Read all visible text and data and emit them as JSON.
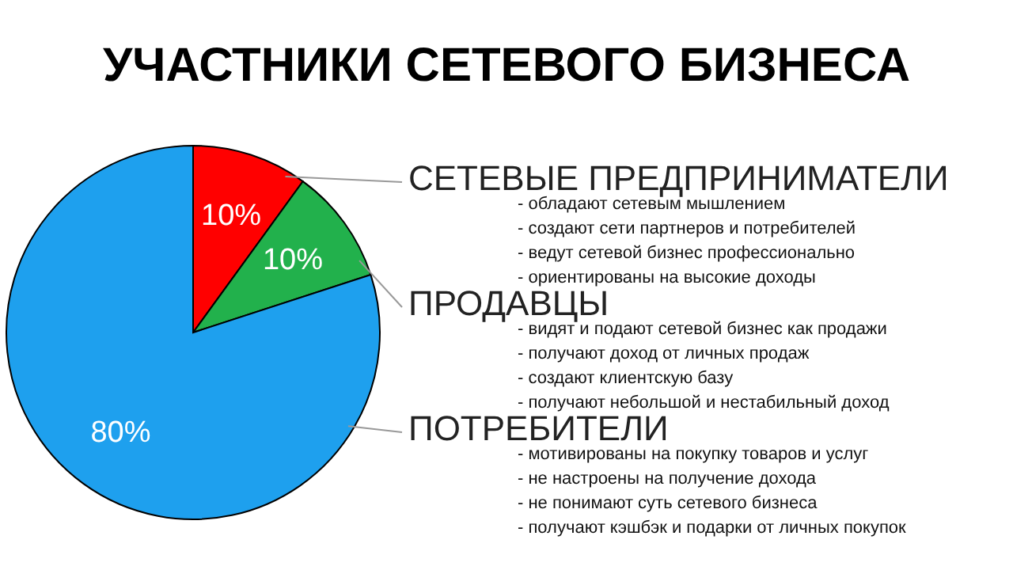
{
  "chart_data": {
    "type": "pie",
    "title": "УЧАСТНИКИ СЕТЕВОГО БИЗНЕСА",
    "categories": [
      "СЕТЕВЫЕ ПРЕДПРИНИМАТЕЛИ",
      "ПРОДАВЦЫ",
      "ПОТРЕБИТЕЛИ"
    ],
    "values": [
      10,
      10,
      80
    ],
    "colors": [
      "#ff0000",
      "#22b14c",
      "#1ea0ee"
    ],
    "value_labels": [
      "10%",
      "10%",
      "80%"
    ],
    "annotations": [
      "- обладают сетевым мышлением",
      "- создают сети партнеров и потребителей",
      "- ведут сетевой бизнес профессионально",
      "- ориентированы на высокие доходы",
      "- видят и подают сетевой бизнес как продажи",
      "- получают доход от личных продаж",
      "- создают клиентскую базу",
      "- получают небольшой и нестабильный доход",
      "- мотивированы на покупку товаров и услуг",
      "- не настроены на получение дохода",
      "- не понимают суть сетевого бизнеса",
      "- получают кэшбэк и подарки от личных покупок"
    ]
  }
}
